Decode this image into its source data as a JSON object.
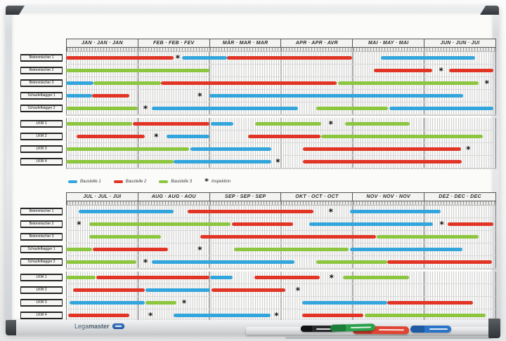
{
  "brand": {
    "text_light": "Lega",
    "text_bold": "master"
  },
  "chart_data": {
    "type": "bar",
    "variant": "gantt-annual-planner",
    "layout": "two half-year grids (Jan-Jun, Jul-Dec), 6 month columns each subdivided into day ticks, equipment rows with colored duration bars and asterisk inspection marks",
    "colors": {
      "blue": "#31a5dc",
      "red": "#e23425",
      "green": "#8cc63e",
      "star": "#111111"
    },
    "legend": [
      {
        "color": "blue",
        "label": "Baustelle 1"
      },
      {
        "color": "red",
        "label": "Baustelle 2"
      },
      {
        "color": "green",
        "label": "Baustelle 3"
      },
      {
        "symbol": "*",
        "label": "Inspektion"
      }
    ],
    "halves": [
      {
        "months": [
          "JAN · JAN · JAN",
          "FEB · FEB · FEV",
          "MÄR · MAR · MAR",
          "APR · APR · AVR",
          "MAI · MAY · MAI",
          "JUN · JUN · JUI"
        ],
        "rows": [
          {
            "label": "Betonmischer 1",
            "segments": [
              {
                "c": "red",
                "s": 0.0,
                "e": 1.5
              },
              {
                "c": "blue",
                "s": 1.62,
                "e": 2.25
              },
              {
                "c": "red",
                "s": 2.25,
                "e": 4.0
              },
              {
                "c": "blue",
                "s": 4.4,
                "e": 5.72
              }
            ],
            "stars": [
              1.56
            ]
          },
          {
            "label": "Betonmischer 2",
            "segments": [
              {
                "c": "green",
                "s": 0.0,
                "e": 2.0
              },
              {
                "c": "red",
                "s": 4.3,
                "e": 5.12
              },
              {
                "c": "red",
                "s": 5.35,
                "e": 5.97
              }
            ],
            "stars": [
              5.24
            ]
          },
          {
            "label": "Betonmischer 3",
            "segments": [
              {
                "c": "blue",
                "s": 0.0,
                "e": 0.38
              },
              {
                "c": "green",
                "s": 0.38,
                "e": 1.33
              },
              {
                "c": "red",
                "s": 1.33,
                "e": 3.78
              },
              {
                "c": "green",
                "s": 3.8,
                "e": 5.76
              }
            ],
            "stars": [
              5.88
            ]
          },
          {
            "label": "Schaufelbagger 1",
            "segments": [
              {
                "c": "blue",
                "s": 0.0,
                "e": 0.36
              },
              {
                "c": "red",
                "s": 0.36,
                "e": 0.88
              },
              {
                "c": "blue",
                "s": 2.0,
                "e": 5.55
              }
            ],
            "stars": [
              1.87
            ]
          },
          {
            "label": "Schaufelbagger 2",
            "segments": [
              {
                "c": "green",
                "s": 0.0,
                "e": 1.0
              },
              {
                "c": "blue",
                "s": 1.2,
                "e": 3.24
              },
              {
                "c": "green",
                "s": 3.5,
                "e": 4.5
              },
              {
                "c": "blue",
                "s": 4.52,
                "e": 5.97
              }
            ],
            "stars": [
              1.11
            ]
          },
          {
            "label": "LKW 1",
            "segments": [
              {
                "c": "green",
                "s": 0.0,
                "e": 0.92
              },
              {
                "c": "red",
                "s": 0.93,
                "e": 2.0
              },
              {
                "c": "blue",
                "s": 2.02,
                "e": 2.34
              },
              {
                "c": "green",
                "s": 2.64,
                "e": 3.56
              },
              {
                "c": "green",
                "s": 3.9,
                "e": 4.8
              }
            ],
            "stars": [
              3.7
            ]
          },
          {
            "label": "LKW 2",
            "segments": [
              {
                "c": "red",
                "s": 0.15,
                "e": 1.1
              },
              {
                "c": "blue",
                "s": 1.4,
                "e": 2.0
              },
              {
                "c": "red",
                "s": 2.54,
                "e": 3.55
              },
              {
                "c": "green",
                "s": 3.56,
                "e": 5.82
              }
            ],
            "stars": [
              1.26
            ]
          },
          {
            "label": "LKW 3",
            "segments": [
              {
                "c": "green",
                "s": 0.0,
                "e": 1.72
              },
              {
                "c": "blue",
                "s": 1.74,
                "e": 2.87
              },
              {
                "c": "red",
                "s": 3.31,
                "e": 5.52
              }
            ],
            "stars": [
              5.62
            ]
          },
          {
            "label": "LKW 4",
            "segments": [
              {
                "c": "green",
                "s": 0.0,
                "e": 1.5
              },
              {
                "c": "blue",
                "s": 1.5,
                "e": 2.87
              },
              {
                "c": "red",
                "s": 3.31,
                "e": 5.53
              }
            ],
            "stars": [
              2.96
            ]
          }
        ]
      },
      {
        "months": [
          "JUL · JUL · JUI",
          "AUG · AUG · AOU",
          "SEP · SEP · SEP",
          "OKT · OCT · OCT",
          "NOV · NOV · NOV",
          "DEZ · DEC · DEC"
        ],
        "rows": [
          {
            "label": "Betonmischer 1",
            "segments": [
              {
                "c": "blue",
                "s": 0.18,
                "e": 1.5
              },
              {
                "c": "red",
                "s": 1.7,
                "e": 3.46
              },
              {
                "c": "blue",
                "s": 3.97,
                "e": 5.23
              }
            ],
            "stars": [
              3.7
            ]
          },
          {
            "label": "Betonmischer 2",
            "segments": [
              {
                "c": "green",
                "s": 0.32,
                "e": 2.3
              },
              {
                "c": "red",
                "s": 2.32,
                "e": 3.17
              },
              {
                "c": "blue",
                "s": 3.4,
                "e": 5.13
              },
              {
                "c": "red",
                "s": 5.33,
                "e": 5.97
              }
            ],
            "stars": [
              0.18,
              5.25
            ]
          },
          {
            "label": "Betonmischer 3",
            "segments": [
              {
                "c": "green",
                "s": 0.32,
                "e": 1.33
              },
              {
                "c": "red",
                "s": 1.88,
                "e": 4.33
              },
              {
                "c": "green",
                "s": 4.34,
                "e": 5.76
              }
            ],
            "stars": []
          },
          {
            "label": "Schaufelbagger 1",
            "segments": [
              {
                "c": "green",
                "s": 0.0,
                "e": 0.36
              },
              {
                "c": "red",
                "s": 0.37,
                "e": 1.42
              },
              {
                "c": "green",
                "s": 2.35,
                "e": 3.95
              },
              {
                "c": "blue",
                "s": 3.97,
                "e": 5.54
              }
            ],
            "stars": [
              1.87
            ]
          },
          {
            "label": "Schaufelbagger 2",
            "segments": [
              {
                "c": "green",
                "s": 0.0,
                "e": 0.98
              },
              {
                "c": "blue",
                "s": 1.2,
                "e": 3.19
              },
              {
                "c": "green",
                "s": 3.5,
                "e": 4.49
              },
              {
                "c": "red",
                "s": 4.49,
                "e": 5.95
              }
            ],
            "stars": [
              1.11
            ]
          },
          {
            "label": "LKW 1",
            "segments": [
              {
                "c": "green",
                "s": 0.0,
                "e": 0.41
              },
              {
                "c": "red",
                "s": 0.42,
                "e": 2.0
              },
              {
                "c": "blue",
                "s": 2.01,
                "e": 2.33
              },
              {
                "c": "red",
                "s": 2.63,
                "e": 3.55
              },
              {
                "c": "green",
                "s": 3.87,
                "e": 4.79
              }
            ],
            "stars": [
              3.71
            ]
          },
          {
            "label": "LKW 2",
            "segments": [
              {
                "c": "red",
                "s": 0.1,
                "e": 1.1
              },
              {
                "c": "blue",
                "s": 1.11,
                "e": 2.01
              },
              {
                "c": "red",
                "s": 2.03,
                "e": 3.06
              }
            ],
            "stars": [
              3.24
            ]
          },
          {
            "label": "LKW 3",
            "segments": [
              {
                "c": "blue",
                "s": 0.05,
                "e": 1.1
              },
              {
                "c": "green",
                "s": 1.11,
                "e": 1.54
              },
              {
                "c": "blue",
                "s": 3.3,
                "e": 4.49
              },
              {
                "c": "red",
                "s": 4.49,
                "e": 5.69
              }
            ],
            "stars": [
              1.65
            ]
          },
          {
            "label": "LKW 4",
            "segments": [
              {
                "c": "red",
                "s": 0.03,
                "e": 0.88
              },
              {
                "c": "blue",
                "s": 1.5,
                "e": 2.86
              },
              {
                "c": "red",
                "s": 3.3,
                "e": 4.15
              },
              {
                "c": "green",
                "s": 4.17,
                "e": 5.86
              }
            ],
            "stars": [
              1.18,
              2.94
            ]
          }
        ]
      }
    ]
  },
  "markers": [
    {
      "name": "black-marker",
      "body": "#26282a",
      "cap": "#101112"
    },
    {
      "name": "green-marker",
      "body": "#2aa14b",
      "cap": "#1d7d38"
    },
    {
      "name": "red-marker",
      "body": "#e04433",
      "cap": "#b93125"
    },
    {
      "name": "blue-marker",
      "body": "#2b74c8",
      "cap": "#1f59a2"
    }
  ]
}
